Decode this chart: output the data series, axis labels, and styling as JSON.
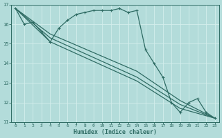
{
  "xlabel": "Humidex (Indice chaleur)",
  "xlim": [
    -0.5,
    23.5
  ],
  "ylim": [
    11,
    17
  ],
  "yticks": [
    11,
    12,
    13,
    14,
    15,
    16,
    17
  ],
  "xticks": [
    0,
    1,
    2,
    3,
    4,
    5,
    6,
    7,
    8,
    9,
    10,
    11,
    12,
    13,
    14,
    15,
    16,
    17,
    18,
    19,
    20,
    21,
    22,
    23
  ],
  "bg_color": "#b3dcda",
  "grid_color": "#d4eeec",
  "line_color": "#2e6b63",
  "lines": [
    {
      "x": [
        0,
        1,
        2,
        3,
        4,
        5,
        6,
        7,
        8,
        9,
        10,
        11,
        12,
        13,
        14,
        15,
        16,
        17,
        18,
        19,
        20,
        21,
        22,
        23
      ],
      "y": [
        16.8,
        16.0,
        16.1,
        15.6,
        15.1,
        15.8,
        16.2,
        16.5,
        16.6,
        16.7,
        16.7,
        16.7,
        16.8,
        16.6,
        16.7,
        14.7,
        14.0,
        13.3,
        12.0,
        11.5,
        12.0,
        12.2,
        11.5,
        11.2
      ],
      "marker": "+",
      "markersize": 3.5,
      "lw": 0.9
    },
    {
      "x": [
        0,
        4,
        14,
        19,
        23
      ],
      "y": [
        16.8,
        15.5,
        13.6,
        12.1,
        11.2
      ],
      "marker": null,
      "markersize": 0,
      "lw": 0.9
    },
    {
      "x": [
        0,
        4,
        14,
        19,
        23
      ],
      "y": [
        16.8,
        15.3,
        13.3,
        11.9,
        11.2
      ],
      "marker": null,
      "markersize": 0,
      "lw": 0.9
    },
    {
      "x": [
        0,
        4,
        14,
        19,
        23
      ],
      "y": [
        16.8,
        15.1,
        13.1,
        11.7,
        11.2
      ],
      "marker": null,
      "markersize": 0,
      "lw": 0.9
    }
  ]
}
